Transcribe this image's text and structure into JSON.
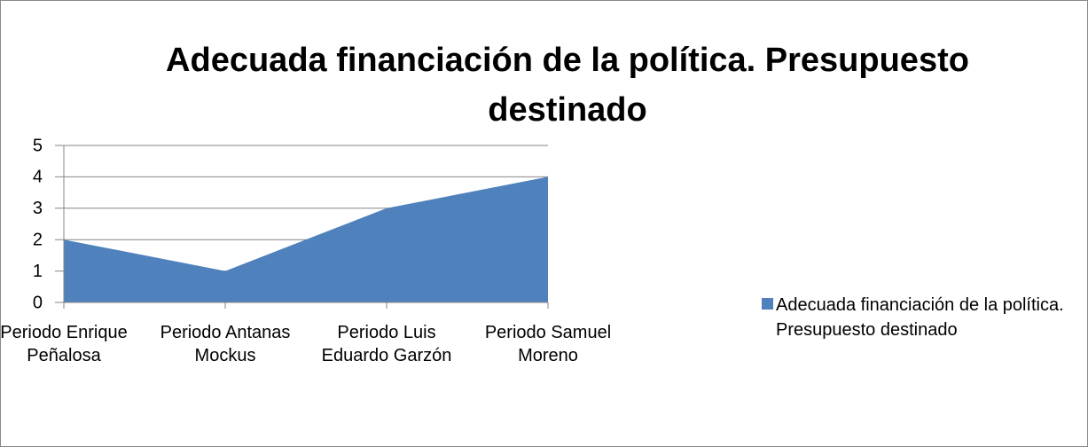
{
  "chart_data": {
    "type": "area",
    "title": "Adecuada financiación de la política. Presupuesto destinado",
    "categories": [
      "Periodo Enrique Peñalosa",
      "Periodo Antanas Mockus",
      "Periodo Luis Eduardo Garzón",
      "Periodo Samuel Moreno"
    ],
    "series": [
      {
        "name": "Adecuada financiación de la política. Presupuesto destinado",
        "color": "#4f81bd",
        "values": [
          2,
          1,
          3,
          4
        ]
      }
    ],
    "ylim": [
      0,
      5
    ],
    "yticks": [
      0,
      1,
      2,
      3,
      4,
      5
    ],
    "grid": true,
    "legend": "right"
  }
}
